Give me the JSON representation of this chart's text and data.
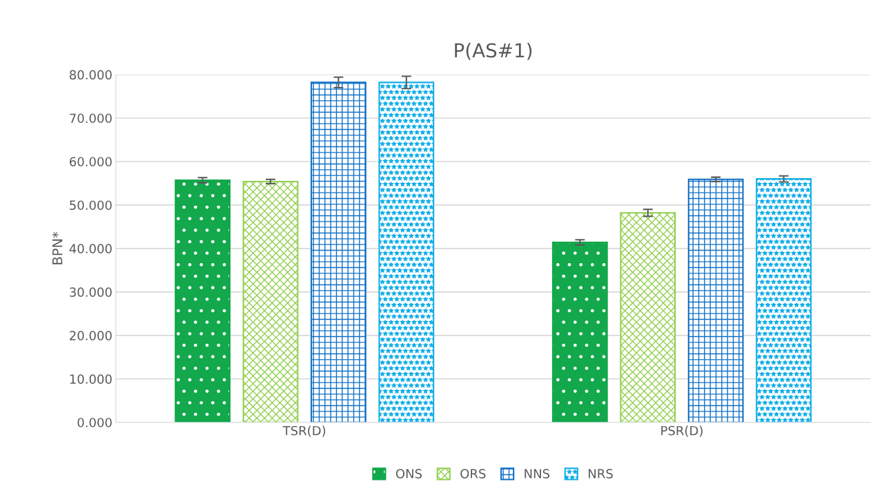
{
  "chart_data": {
    "type": "bar",
    "title": "P(AS#1)",
    "ylabel": "BPN*",
    "categories": [
      "TSR(D)",
      "PSR(D)"
    ],
    "series": [
      {
        "name": "ONS",
        "color": "#12a84b",
        "values": [
          55.7,
          41.4
        ],
        "errors": [
          0.6,
          0.6
        ]
      },
      {
        "name": "ORS",
        "color": "#92d050",
        "values": [
          55.4,
          48.2
        ],
        "errors": [
          0.5,
          0.8
        ]
      },
      {
        "name": "NNS",
        "color": "#0f6fc6",
        "values": [
          78.2,
          55.9
        ],
        "errors": [
          1.2,
          0.5
        ]
      },
      {
        "name": "NRS",
        "color": "#12aee8",
        "values": [
          78.2,
          56.0
        ],
        "errors": [
          1.4,
          0.7
        ]
      }
    ],
    "ylim": [
      0,
      80
    ],
    "yticks": [
      {
        "value": 0,
        "label": "0.000"
      },
      {
        "value": 10,
        "label": "10.000"
      },
      {
        "value": 20,
        "label": "20.000"
      },
      {
        "value": 30,
        "label": "30.000"
      },
      {
        "value": 40,
        "label": "40.000"
      },
      {
        "value": 50,
        "label": "50.000"
      },
      {
        "value": 60,
        "label": "60.000"
      },
      {
        "value": 70,
        "label": "70.000"
      },
      {
        "value": 80,
        "label": "80.000"
      }
    ],
    "grid": "y",
    "legend": "bottom"
  }
}
